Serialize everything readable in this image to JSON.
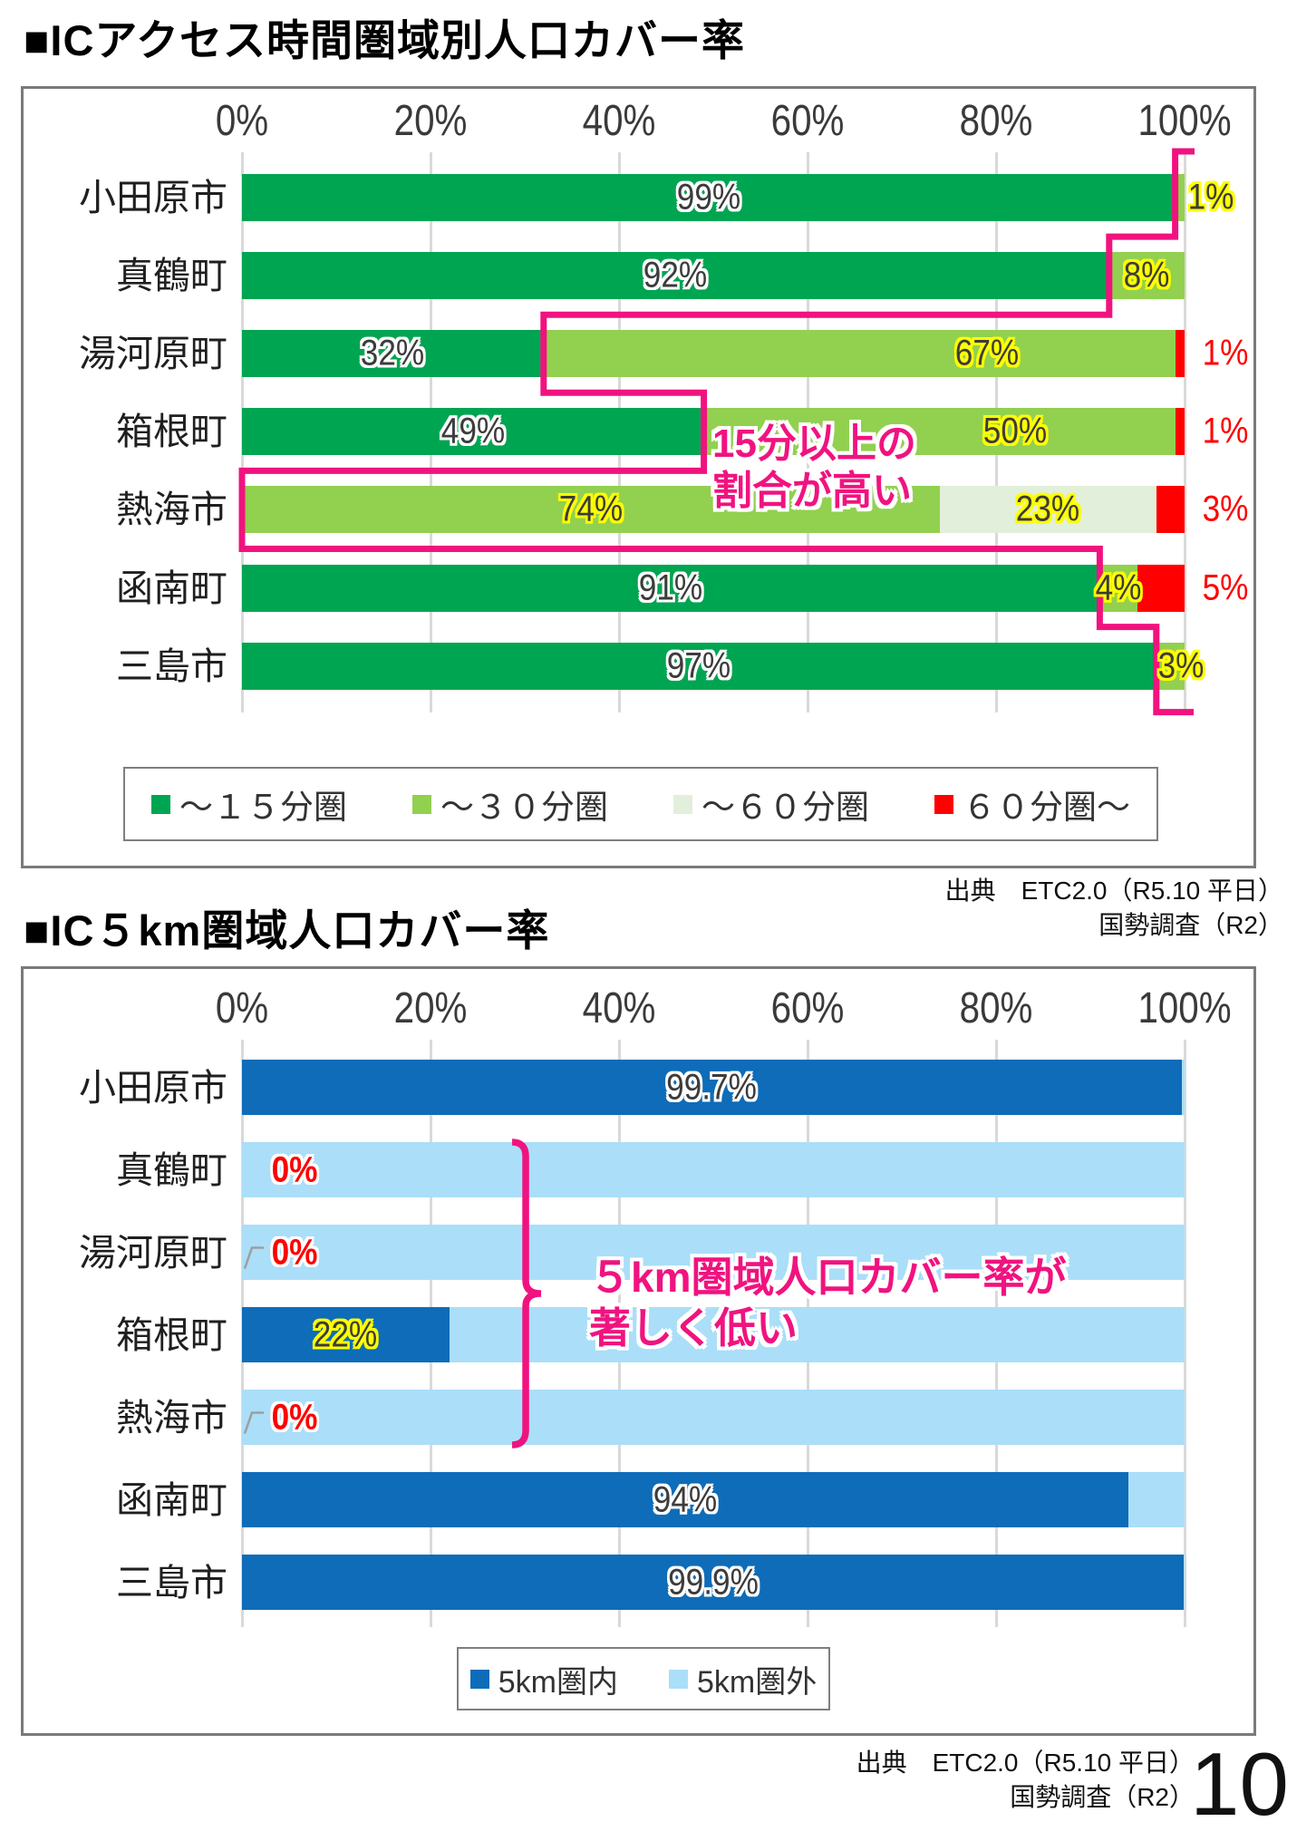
{
  "page": {
    "number": "10"
  },
  "colors": {
    "pink_accent": "#F0137F",
    "gridline": "#D9D9D9",
    "box_border": "#7A7A7A",
    "leader_gray": "#9E9E9E"
  },
  "source_top": {
    "line1": "出典　ETC2.0（R5.10 平日）",
    "line2": "国勢調査（R2）"
  },
  "source_bottom": {
    "line1": "出典　ETC2.0（R5.10 平日）",
    "line2": "国勢調査（R2）"
  },
  "chart_data": [
    {
      "id": "ic-access-time-coverage",
      "type": "bar",
      "orientation": "horizontal",
      "stacked": true,
      "title": "■ICアクセス時間圏域別人口カバー率",
      "categories": [
        "小田原市",
        "真鶴町",
        "湯河原町",
        "箱根町",
        "熱海市",
        "函南町",
        "三島市"
      ],
      "series": [
        {
          "name": "～１５分圏",
          "color": "#00A551",
          "values": [
            99,
            92,
            32,
            49,
            0,
            91,
            97
          ]
        },
        {
          "name": "～３０分圏",
          "color": "#92D050",
          "values": [
            1,
            8,
            67,
            50,
            74,
            4,
            3
          ]
        },
        {
          "name": "～６０分圏",
          "color": "#E2EFDA",
          "values": [
            0,
            0,
            0,
            0,
            23,
            0,
            0
          ]
        },
        {
          "name": "６０分圏～",
          "color": "#FF0000",
          "values": [
            0,
            0,
            1,
            1,
            3,
            5,
            0
          ]
        }
      ],
      "xlim": [
        0,
        100
      ],
      "x_ticks": [
        "0%",
        "20%",
        "40%",
        "60%",
        "80%",
        "100%"
      ],
      "grid": true,
      "legend_position": "bottom",
      "value_labels": [
        {
          "row": 0,
          "text": "99%",
          "x": 49.5,
          "style": "white"
        },
        {
          "row": 0,
          "text": "1%",
          "x": 102.8,
          "style": "yellow"
        },
        {
          "row": 1,
          "text": "92%",
          "x": 46,
          "style": "white"
        },
        {
          "row": 1,
          "text": "8%",
          "x": 96,
          "style": "yellow"
        },
        {
          "row": 2,
          "text": "32%",
          "x": 16,
          "style": "white"
        },
        {
          "row": 2,
          "text": "67%",
          "x": 79,
          "style": "yellow"
        },
        {
          "row": 2,
          "text": "1%",
          "x": 104.3,
          "style": "red"
        },
        {
          "row": 3,
          "text": "49%",
          "x": 24.5,
          "style": "white"
        },
        {
          "row": 3,
          "text": "50%",
          "x": 82,
          "style": "yellow"
        },
        {
          "row": 3,
          "text": "1%",
          "x": 104.3,
          "style": "red"
        },
        {
          "row": 4,
          "text": "74%",
          "x": 37,
          "style": "yellow"
        },
        {
          "row": 4,
          "text": "23%",
          "x": 85.5,
          "style": "yellow"
        },
        {
          "row": 4,
          "text": "3%",
          "x": 104.3,
          "style": "red"
        },
        {
          "row": 5,
          "text": "91%",
          "x": 45.5,
          "style": "white"
        },
        {
          "row": 5,
          "text": "4%",
          "x": 93,
          "style": "yellow"
        },
        {
          "row": 5,
          "text": "5%",
          "x": 104.3,
          "style": "red"
        },
        {
          "row": 6,
          "text": "97%",
          "x": 48.5,
          "style": "white"
        },
        {
          "row": 6,
          "text": "3%",
          "x": 99.6,
          "style": "yellow"
        }
      ],
      "annotation": {
        "lines": [
          "15分以上の",
          "割合が高い"
        ]
      },
      "overlay": "step-line"
    },
    {
      "id": "ic-5km-coverage",
      "type": "bar",
      "orientation": "horizontal",
      "stacked": true,
      "title": "■IC５km圏域人口カバー率",
      "categories": [
        "小田原市",
        "真鶴町",
        "湯河原町",
        "箱根町",
        "熱海市",
        "函南町",
        "三島市"
      ],
      "series": [
        {
          "name": "5km圏内",
          "color": "#0E6CB8",
          "values": [
            99.7,
            0,
            0,
            22,
            0,
            94,
            99.9
          ]
        },
        {
          "name": "5km圏外",
          "color": "#ABDEF8",
          "values": [
            0.3,
            100,
            100,
            78,
            100,
            6,
            0.1
          ]
        }
      ],
      "xlim": [
        0,
        100
      ],
      "x_ticks": [
        "0%",
        "20%",
        "40%",
        "60%",
        "80%",
        "100%"
      ],
      "grid": true,
      "legend_position": "bottom",
      "value_labels": [
        {
          "row": 0,
          "text": "99.7%",
          "x": 49.8,
          "style": "white"
        },
        {
          "row": 1,
          "text": "0%",
          "x": 5.6,
          "style": "redglow"
        },
        {
          "row": 2,
          "text": "0%",
          "x": 5.6,
          "style": "redglow",
          "leader": true
        },
        {
          "row": 3,
          "text": "22%",
          "x": 11,
          "style": "yellow"
        },
        {
          "row": 4,
          "text": "0%",
          "x": 5.6,
          "style": "redglow",
          "leader": true
        },
        {
          "row": 5,
          "text": "94%",
          "x": 47,
          "style": "white"
        },
        {
          "row": 6,
          "text": "99.9%",
          "x": 50,
          "style": "white"
        }
      ],
      "annotation": {
        "lines": [
          "５km圏域人口カバー率が",
          "著しく低い"
        ]
      },
      "overlay": "brace",
      "brace": {
        "rows": [
          1,
          4
        ],
        "x": 30.1
      }
    }
  ]
}
